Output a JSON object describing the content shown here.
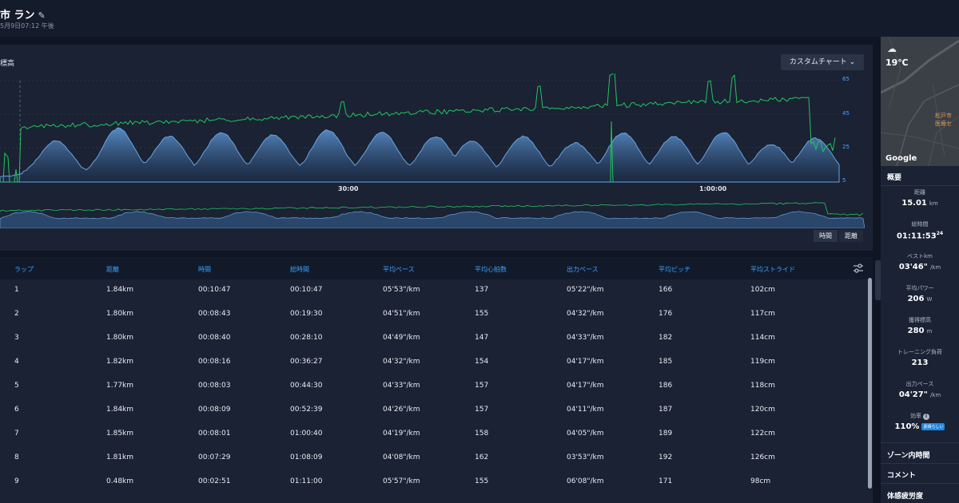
{
  "activity": {
    "title": "市 ラン",
    "subtitle": "5月9日07:12 午後"
  },
  "chart": {
    "label": "標高",
    "custom_button": "カスタムチャート",
    "y_ticks": [
      "65",
      "45",
      "25",
      "5"
    ],
    "x_ticks": [
      "30:00",
      "1:00:00"
    ],
    "toggle_time": "時間",
    "toggle_distance": "距離",
    "colors": {
      "line": "#22c55e",
      "area": "#4f86c6"
    }
  },
  "table": {
    "headers": [
      "ラップ",
      "距離",
      "時間",
      "総時間",
      "平均ペース",
      "平均心拍数",
      "出力ペース",
      "平均ピッチ",
      "平均ストライド"
    ],
    "rows": [
      [
        "1",
        "1.84km",
        "00:10:47",
        "00:10:47",
        "05'53\"/km",
        "137",
        "05'22\"/km",
        "166",
        "102cm"
      ],
      [
        "2",
        "1.80km",
        "00:08:43",
        "00:19:30",
        "04'51\"/km",
        "155",
        "04'32\"/km",
        "176",
        "117cm"
      ],
      [
        "3",
        "1.80km",
        "00:08:40",
        "00:28:10",
        "04'49\"/km",
        "147",
        "04'33\"/km",
        "182",
        "114cm"
      ],
      [
        "4",
        "1.82km",
        "00:08:16",
        "00:36:27",
        "04'32\"/km",
        "154",
        "04'17\"/km",
        "185",
        "119cm"
      ],
      [
        "5",
        "1.77km",
        "00:08:03",
        "00:44:30",
        "04'33\"/km",
        "157",
        "04'17\"/km",
        "186",
        "118cm"
      ],
      [
        "6",
        "1.84km",
        "00:08:09",
        "00:52:39",
        "04'26\"/km",
        "157",
        "04'11\"/km",
        "187",
        "120cm"
      ],
      [
        "7",
        "1.85km",
        "00:08:01",
        "01:00:40",
        "04'19\"/km",
        "158",
        "04'05\"/km",
        "189",
        "122cm"
      ],
      [
        "8",
        "1.81km",
        "00:07:29",
        "01:08:09",
        "04'08\"/km",
        "162",
        "03'53\"/km",
        "192",
        "126cm"
      ],
      [
        "9",
        "0.48km",
        "00:02:51",
        "01:11:00",
        "05'57\"/km",
        "155",
        "06'08\"/km",
        "171",
        "98cm"
      ]
    ]
  },
  "sidebar": {
    "weather_temp": "19℃",
    "map_place": "松戸市\n医療セ",
    "map_brand": "Google",
    "overview_title": "概要",
    "stats": [
      {
        "label": "距離",
        "value": "15.01",
        "unit": "km"
      },
      {
        "label": "総時間",
        "value": "01:11:53",
        "sup": "24"
      },
      {
        "label": "ベストkm",
        "value": "03'46\"",
        "unit": "/km"
      },
      {
        "label": "平均パワー",
        "value": "206",
        "unit": "W"
      },
      {
        "label": "獲得標高",
        "value": "280",
        "unit": "m"
      },
      {
        "label": "トレーニング負荷",
        "value": "213"
      },
      {
        "label": "出力ペース",
        "value": "04'27\"",
        "unit": "/km"
      },
      {
        "label": "効率",
        "value": "110%",
        "badge": "素晴らしい"
      }
    ],
    "sections": [
      "ゾーン内時間",
      "コメント",
      "体感疲労度"
    ]
  }
}
